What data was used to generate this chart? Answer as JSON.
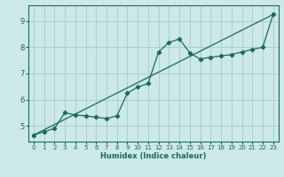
{
  "xlabel": "Humidex (Indice chaleur)",
  "ylabel": "",
  "bg_color": "#cce8e8",
  "grid_color": "#aacfcf",
  "line_color": "#1a6b5a",
  "xlim": [
    -0.5,
    23.5
  ],
  "ylim": [
    4.4,
    9.6
  ],
  "xticks": [
    0,
    1,
    2,
    3,
    4,
    5,
    6,
    7,
    8,
    9,
    10,
    11,
    12,
    13,
    14,
    15,
    16,
    17,
    18,
    19,
    20,
    21,
    22,
    23
  ],
  "yticks": [
    5,
    6,
    7,
    8,
    9
  ],
  "data_x": [
    0,
    1,
    2,
    3,
    4,
    5,
    6,
    7,
    8,
    9,
    10,
    11,
    12,
    13,
    14,
    15,
    16,
    17,
    18,
    19,
    20,
    21,
    22,
    23
  ],
  "data_y": [
    4.65,
    4.78,
    4.9,
    5.5,
    5.42,
    5.38,
    5.33,
    5.28,
    5.38,
    6.25,
    6.48,
    6.62,
    7.82,
    8.18,
    8.32,
    7.78,
    7.55,
    7.62,
    7.67,
    7.72,
    7.82,
    7.92,
    8.0,
    9.25
  ],
  "trend_x": [
    0,
    23
  ],
  "trend_y": [
    4.65,
    9.25
  ]
}
